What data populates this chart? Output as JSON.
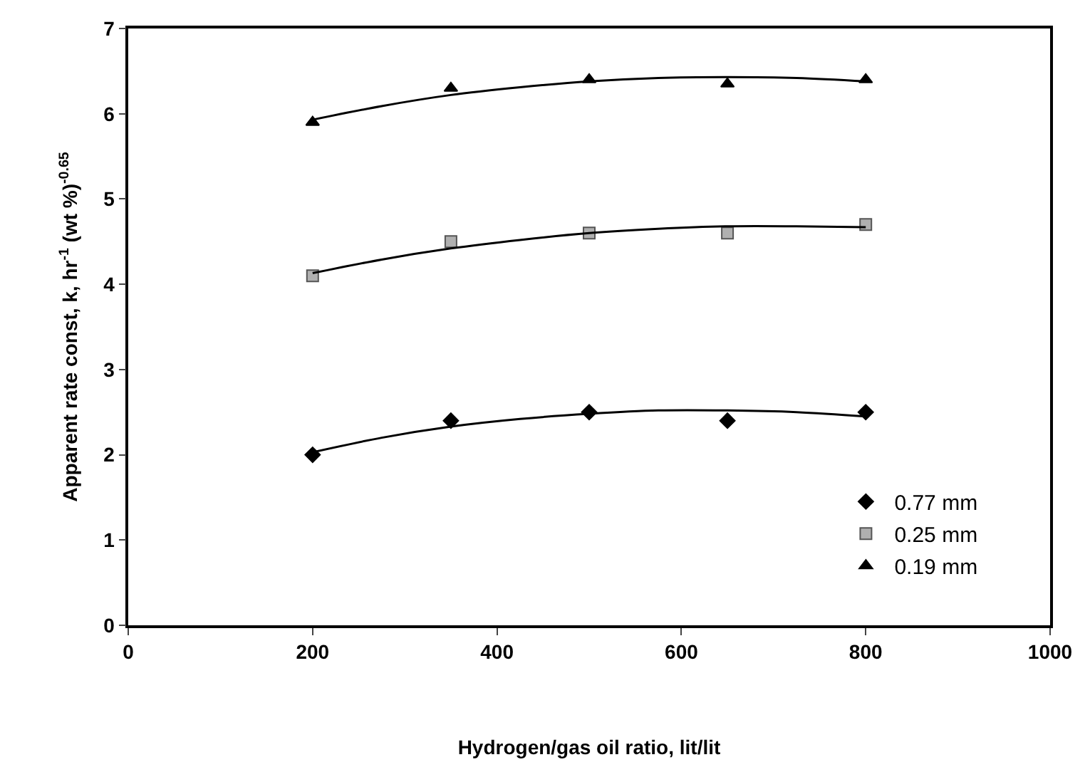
{
  "chart_data": {
    "type": "scatter",
    "xlabel": "Hydrogen/gas oil ratio, lit/lit",
    "ylabel": "Apparent rate const, k, hr$^{-1}$ (wt %)$^{-0.65}$",
    "x": [
      200,
      350,
      500,
      650,
      800
    ],
    "series": [
      {
        "name": "0.77 mm",
        "color": "#000000",
        "marker": "diamond",
        "values": [
          2.0,
          2.4,
          2.5,
          2.4,
          2.5
        ]
      },
      {
        "name": "0.25 mm",
        "color": "#b0b0b0",
        "marker": "square",
        "values": [
          4.1,
          4.5,
          4.6,
          4.6,
          4.7
        ]
      },
      {
        "name": "0.19 mm",
        "color": "#000000",
        "marker": "triangle",
        "values": [
          5.9,
          6.3,
          6.4,
          6.35,
          6.4
        ]
      },
      {
        "type": "line",
        "color": "#000000",
        "marker": "none",
        "x": [
          200,
          275,
          350,
          425,
          500,
          575,
          650,
          725,
          800
        ],
        "values": [
          2.03,
          2.2,
          2.33,
          2.42,
          2.48,
          2.52,
          2.52,
          2.5,
          2.45
        ]
      },
      {
        "type": "line",
        "color": "#000000",
        "marker": "none",
        "x": [
          200,
          275,
          350,
          425,
          500,
          575,
          650,
          725,
          800
        ],
        "values": [
          4.13,
          4.29,
          4.42,
          4.52,
          4.6,
          4.65,
          4.68,
          4.68,
          4.67
        ]
      },
      {
        "type": "line",
        "color": "#000000",
        "marker": "none",
        "x": [
          200,
          275,
          350,
          425,
          500,
          575,
          650,
          725,
          800
        ],
        "values": [
          5.93,
          6.09,
          6.22,
          6.31,
          6.38,
          6.42,
          6.43,
          6.42,
          6.38
        ]
      }
    ],
    "xlim": [
      0,
      1000
    ],
    "xticks": [
      0,
      200,
      400,
      600,
      800,
      1000
    ],
    "ylim": [
      0,
      7
    ],
    "yticks": [
      0,
      1,
      2,
      3,
      4,
      5,
      6,
      7
    ],
    "legend": "bottom right",
    "line_style": "solid"
  }
}
